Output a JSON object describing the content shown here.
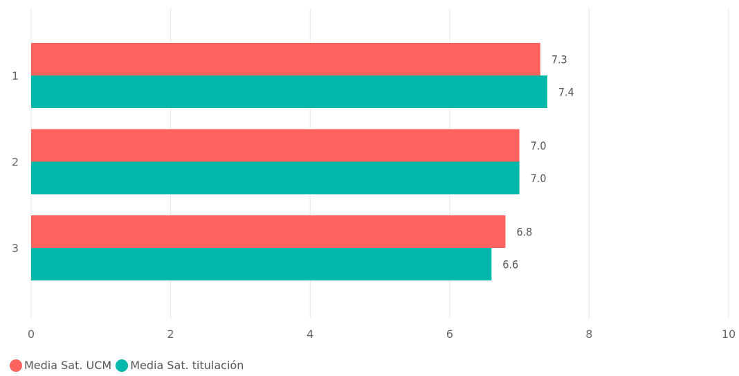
{
  "chart_data": {
    "type": "bar",
    "orientation": "horizontal",
    "categories": [
      "1",
      "2",
      "3"
    ],
    "series": [
      {
        "name": "Media Sat. UCM",
        "values": [
          7.3,
          7.0,
          6.8
        ],
        "labels": [
          "7.3",
          "7.0",
          "6.8"
        ],
        "color": "#fd625e"
      },
      {
        "name": "Media Sat. titulación",
        "values": [
          7.4,
          7.0,
          6.6
        ],
        "labels": [
          "7.4",
          "7.0",
          "6.6"
        ],
        "color": "#01b8aa"
      }
    ],
    "xlim": [
      0,
      10
    ],
    "xticks": [
      "0",
      "2",
      "4",
      "6",
      "8",
      "10"
    ],
    "grid": true,
    "legend_position": "bottom-left",
    "title": "",
    "xlabel": "",
    "ylabel": ""
  }
}
